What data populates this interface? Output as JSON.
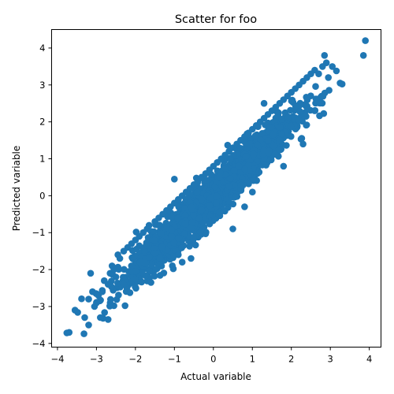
{
  "chart_data": {
    "type": "scatter",
    "title": "Scatter for foo",
    "xlabel": "Actual variable",
    "ylabel": "Predicted variable",
    "xlim": [
      -4.15,
      4.3
    ],
    "ylim": [
      -4.1,
      4.5
    ],
    "xticks": [
      -4,
      -3,
      -2,
      -1,
      0,
      1,
      2,
      3,
      4
    ],
    "yticks": [
      -4,
      -3,
      -2,
      -1,
      0,
      1,
      2,
      3,
      4
    ],
    "xtick_labels": [
      "−4",
      "−3",
      "−2",
      "−1",
      "0",
      "1",
      "2",
      "3",
      "4"
    ],
    "ytick_labels": [
      "−4",
      "−3",
      "−2",
      "−1",
      "0",
      "1",
      "2",
      "3",
      "4"
    ],
    "grid": false,
    "marker_color": "#1f77b4",
    "series": [
      {
        "x": [
          -3.7,
          -3.55,
          -3.3,
          -3.2,
          -3.15,
          -3.1,
          -3.05,
          -3.0,
          -2.95,
          -2.85,
          -2.8,
          -2.7,
          -2.65,
          -2.6,
          -2.55,
          -2.5,
          -2.45,
          -2.4,
          -2.3,
          -2.2,
          -2.1,
          -2.0,
          -1.9,
          -1.8,
          -1.7,
          -1.65,
          -1.5,
          -1.4,
          -1.3,
          -1.2,
          -1.1,
          -1.0,
          -0.9,
          -0.8,
          -0.7,
          -0.6,
          -0.5,
          -0.4,
          -0.3,
          -0.2,
          -0.1,
          0.0,
          0.1,
          0.2,
          0.3,
          0.4,
          0.5,
          0.6,
          0.7,
          0.8,
          0.9,
          1.0,
          1.1,
          1.2,
          1.3,
          1.4,
          1.5,
          1.6,
          1.7,
          1.8,
          1.9,
          2.0,
          2.1,
          2.2,
          2.3,
          2.4,
          2.5,
          2.6,
          2.7,
          2.8,
          2.85,
          2.9,
          2.95,
          3.05,
          3.25,
          3.85,
          3.9,
          -2.7,
          -2.3,
          -1.6,
          -0.8,
          0.5,
          1.0,
          1.8,
          2.3,
          2.6,
          -3.2,
          -2.9,
          -1.0,
          0.8,
          1.3,
          -0.9
        ],
        "y": [
          -3.7,
          -3.1,
          -3.3,
          -3.5,
          -2.1,
          -2.6,
          -3.0,
          -2.9,
          -2.7,
          -2.6,
          -2.3,
          -2.4,
          -2.1,
          -1.9,
          -2.0,
          -2.2,
          -1.6,
          -1.7,
          -1.5,
          -1.4,
          -1.3,
          -1.2,
          -1.1,
          -1.0,
          -0.9,
          -0.8,
          -0.7,
          -0.6,
          -0.5,
          -0.4,
          -0.3,
          -0.2,
          -0.1,
          0.0,
          0.1,
          0.2,
          0.3,
          0.4,
          0.5,
          0.6,
          0.7,
          0.8,
          0.9,
          1.0,
          1.1,
          1.2,
          1.3,
          1.4,
          1.5,
          1.6,
          1.7,
          1.8,
          1.9,
          2.0,
          2.1,
          2.2,
          2.3,
          2.4,
          2.5,
          2.6,
          2.7,
          2.8,
          2.9,
          3.0,
          3.1,
          3.2,
          3.3,
          3.4,
          3.3,
          3.5,
          3.8,
          3.6,
          3.2,
          3.5,
          3.05,
          3.8,
          4.2,
          -3.35,
          -2.4,
          -2.35,
          -1.8,
          -0.9,
          0.1,
          0.8,
          1.4,
          2.3,
          -2.8,
          -3.3,
          0.45,
          -0.3,
          2.5,
          -1.6
        ]
      }
    ]
  }
}
